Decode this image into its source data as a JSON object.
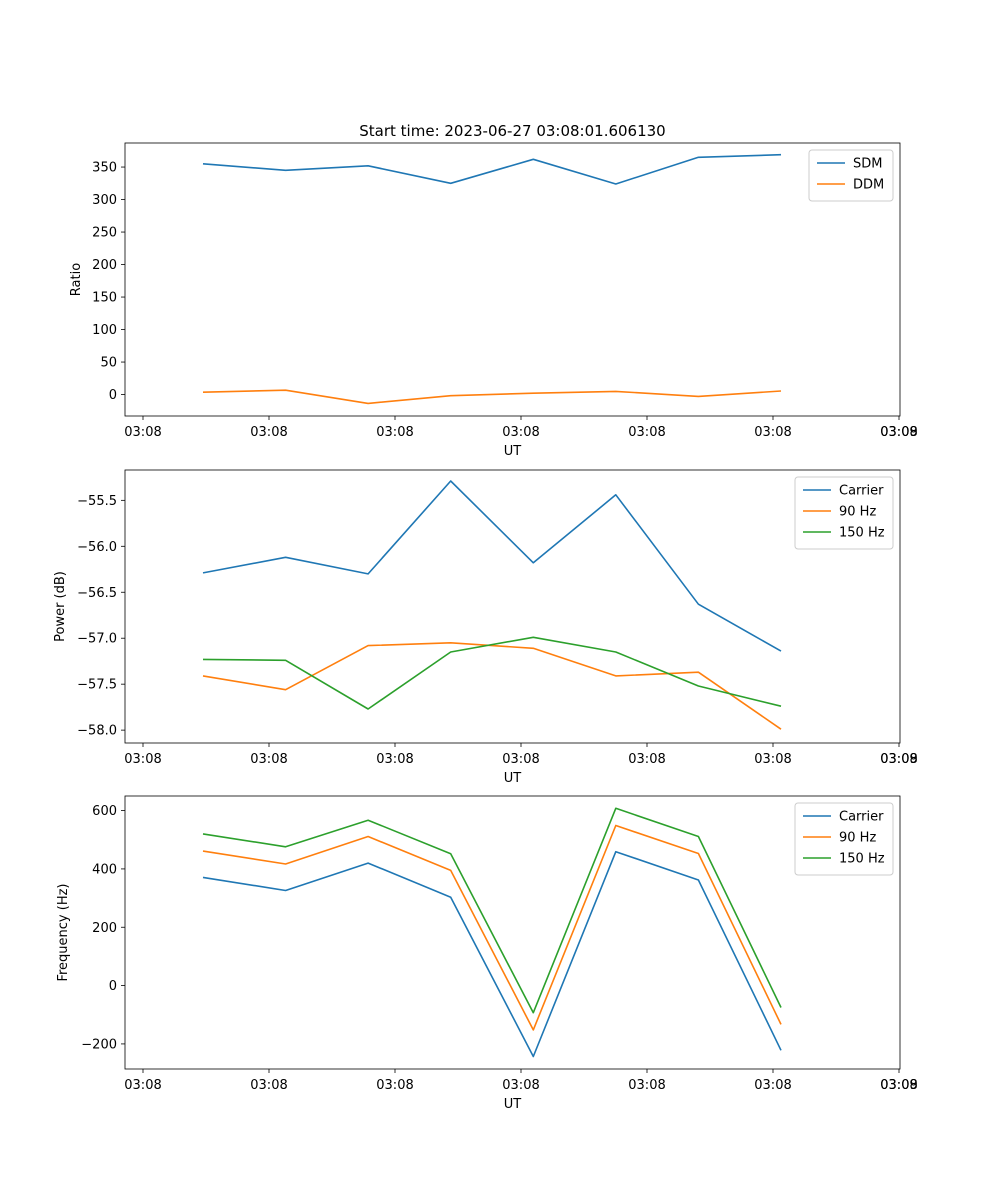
{
  "figure_title": "Start time: 2023-06-27 03:08:01.606130",
  "colors": {
    "blue": "#1f77b4",
    "orange": "#ff7f0e",
    "green": "#2ca02c"
  },
  "chart_data": [
    {
      "type": "line",
      "title": "Start time: 2023-06-27 03:08:01.606130",
      "xlabel": "UT",
      "ylabel": "Ratio",
      "x_tick_labels": [
        "03:08",
        "03:08",
        "03:08",
        "03:08",
        "03:08",
        "03:08",
        "03:08",
        "03:09"
      ],
      "y_ticks": [
        0,
        50,
        100,
        150,
        200,
        250,
        300,
        350
      ],
      "ylim": [
        -33,
        387
      ],
      "legend_position": "top-right",
      "series": [
        {
          "name": "SDM",
          "color": "#1f77b4",
          "values": [
            355,
            345,
            352,
            325,
            362,
            324,
            365,
            369
          ]
        },
        {
          "name": "DDM",
          "color": "#ff7f0e",
          "values": [
            3.6,
            6.7,
            -13.6,
            -1.8,
            2.1,
            4.8,
            -2.9,
            5.5
          ]
        }
      ]
    },
    {
      "type": "line",
      "xlabel": "UT",
      "ylabel": "Power (dB)",
      "x_tick_labels": [
        "03:08",
        "03:08",
        "03:08",
        "03:08",
        "03:08",
        "03:08",
        "03:08",
        "03:09"
      ],
      "y_ticks": [
        -58.0,
        -57.5,
        -57.0,
        -56.5,
        -56.0,
        -55.5
      ],
      "y_tick_labels": [
        "−58.0",
        "−57.5",
        "−57.0",
        "−56.5",
        "−56.0",
        "−55.5"
      ],
      "ylim": [
        -58.14,
        -55.17
      ],
      "legend_position": "top-right",
      "series": [
        {
          "name": "Carrier",
          "color": "#1f77b4",
          "values": [
            -56.29,
            -56.12,
            -56.3,
            -55.29,
            -56.18,
            -55.44,
            -56.63,
            -57.14
          ]
        },
        {
          "name": "90 Hz",
          "color": "#ff7f0e",
          "values": [
            -57.41,
            -57.56,
            -57.08,
            -57.05,
            -57.11,
            -57.41,
            -57.37,
            -57.99
          ]
        },
        {
          "name": "150 Hz",
          "color": "#2ca02c",
          "values": [
            -57.23,
            -57.24,
            -57.77,
            -57.15,
            -56.99,
            -57.15,
            -57.52,
            -57.74
          ]
        }
      ]
    },
    {
      "type": "line",
      "xlabel": "UT",
      "ylabel": "Frequency (Hz)",
      "x_tick_labels": [
        "03:08",
        "03:08",
        "03:08",
        "03:08",
        "03:08",
        "03:08",
        "03:08",
        "03:09"
      ],
      "y_ticks": [
        -200,
        0,
        200,
        400,
        600
      ],
      "y_tick_labels": [
        "−200",
        "0",
        "200",
        "400",
        "600"
      ],
      "ylim": [
        -286,
        650
      ],
      "legend_position": "top-right",
      "series": [
        {
          "name": "Carrier",
          "color": "#1f77b4",
          "values": [
            371,
            326,
            420,
            303,
            -243,
            459,
            362,
            -222
          ]
        },
        {
          "name": "90 Hz",
          "color": "#ff7f0e",
          "values": [
            461,
            417,
            511,
            395,
            -152,
            549,
            453,
            -133
          ]
        },
        {
          "name": "150 Hz",
          "color": "#2ca02c",
          "values": [
            520,
            476,
            567,
            452,
            -93,
            608,
            511,
            -75
          ]
        }
      ]
    }
  ]
}
